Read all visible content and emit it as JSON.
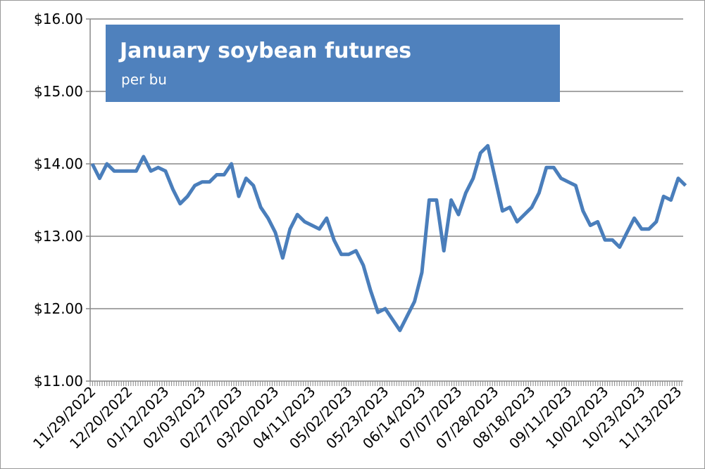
{
  "chart_data": {
    "type": "line",
    "title": "January soybean futures",
    "subtitle": "per bu",
    "categories": [
      "11/29/2022",
      null,
      null,
      null,
      null,
      "12/20/2022",
      null,
      null,
      null,
      null,
      "01/12/2023",
      null,
      null,
      null,
      null,
      "02/03/2023",
      null,
      null,
      null,
      null,
      "02/27/2023",
      null,
      null,
      null,
      null,
      "03/20/2023",
      null,
      null,
      null,
      null,
      "04/11/2023",
      null,
      null,
      null,
      null,
      "05/02/2023",
      null,
      null,
      null,
      null,
      "05/23/2023",
      null,
      null,
      null,
      null,
      "06/14/2023",
      null,
      null,
      null,
      null,
      "07/07/2023",
      null,
      null,
      null,
      null,
      "07/28/2023",
      null,
      null,
      null,
      null,
      "08/18/2023",
      null,
      null,
      null,
      null,
      "09/11/2023",
      null,
      null,
      null,
      null,
      "10/02/2023",
      null,
      null,
      null,
      null,
      "10/23/2023",
      null,
      null,
      null,
      null,
      "11/13/2023",
      null
    ],
    "series": [
      {
        "name": "January soybean futures",
        "color": "#4a7ebb",
        "values": [
          14.0,
          13.8,
          14.0,
          13.9,
          13.9,
          13.9,
          13.9,
          14.1,
          13.9,
          13.95,
          13.9,
          13.65,
          13.45,
          13.55,
          13.7,
          13.75,
          13.75,
          13.85,
          13.85,
          14.0,
          13.55,
          13.8,
          13.7,
          13.4,
          13.25,
          13.05,
          12.7,
          13.1,
          13.3,
          13.2,
          13.15,
          13.1,
          13.25,
          12.95,
          12.75,
          12.75,
          12.8,
          12.6,
          12.25,
          11.95,
          12.0,
          11.85,
          11.7,
          11.9,
          12.1,
          12.5,
          13.5,
          13.5,
          12.8,
          13.5,
          13.3,
          13.6,
          13.8,
          14.15,
          14.25,
          13.8,
          13.35,
          13.4,
          13.2,
          13.3,
          13.4,
          13.6,
          13.95,
          13.95,
          13.8,
          13.75,
          13.7,
          13.35,
          13.15,
          13.2,
          12.95,
          12.95,
          12.85,
          13.05,
          13.25,
          13.1,
          13.1,
          13.2,
          13.55,
          13.5,
          13.8,
          13.7
        ]
      }
    ],
    "ylim": [
      11,
      16
    ],
    "yticks": [
      {
        "value": 11,
        "label": "$11.00"
      },
      {
        "value": 12,
        "label": "$12.00"
      },
      {
        "value": 13,
        "label": "$13.00"
      },
      {
        "value": 14,
        "label": "$14.00"
      },
      {
        "value": 15,
        "label": "$15.00"
      },
      {
        "value": 16,
        "label": "$16.00"
      }
    ],
    "grid": true
  }
}
